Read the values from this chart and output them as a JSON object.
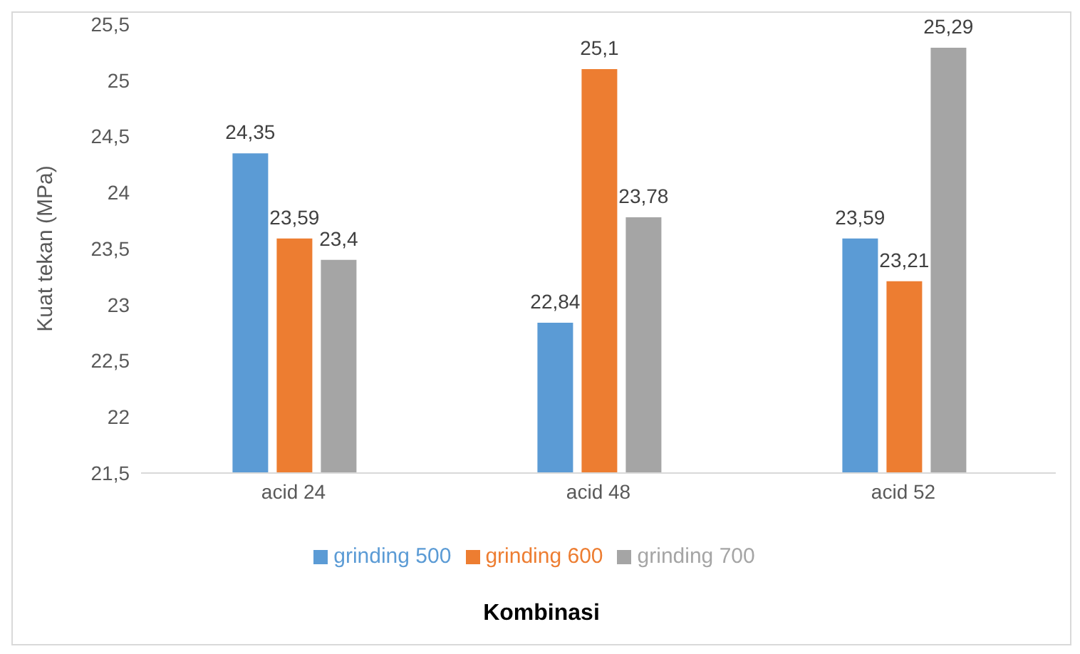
{
  "chart_data": {
    "type": "bar",
    "xlabel": "Kombinasi",
    "ylabel": "Kuat tekan (MPa)",
    "categories": [
      "acid 24",
      "acid 48",
      "acid 52"
    ],
    "series": [
      {
        "name": "grinding 500",
        "color": "#5b9bd5",
        "values": [
          24.35,
          22.84,
          23.59
        ],
        "value_labels": [
          "24,35",
          "22,84",
          "23,59"
        ]
      },
      {
        "name": "grinding 600",
        "color": "#ed7d31",
        "values": [
          23.59,
          25.1,
          23.21
        ],
        "value_labels": [
          "23,59",
          "25,1",
          "23,21"
        ]
      },
      {
        "name": "grinding 700",
        "color": "#a5a5a5",
        "values": [
          23.4,
          23.78,
          25.29
        ],
        "value_labels": [
          "23,4",
          "23,78",
          "25,29"
        ]
      }
    ],
    "ylim": [
      21.5,
      25.5
    ],
    "yticks": [
      {
        "value": 21.5,
        "label": "21,5"
      },
      {
        "value": 22,
        "label": "22"
      },
      {
        "value": 22.5,
        "label": "22,5"
      },
      {
        "value": 23,
        "label": "23"
      },
      {
        "value": 23.5,
        "label": "23,5"
      },
      {
        "value": 24,
        "label": "24"
      },
      {
        "value": 24.5,
        "label": "24,5"
      },
      {
        "value": 25,
        "label": "25"
      },
      {
        "value": 25.5,
        "label": "25,5"
      }
    ],
    "legend": "bottom"
  }
}
